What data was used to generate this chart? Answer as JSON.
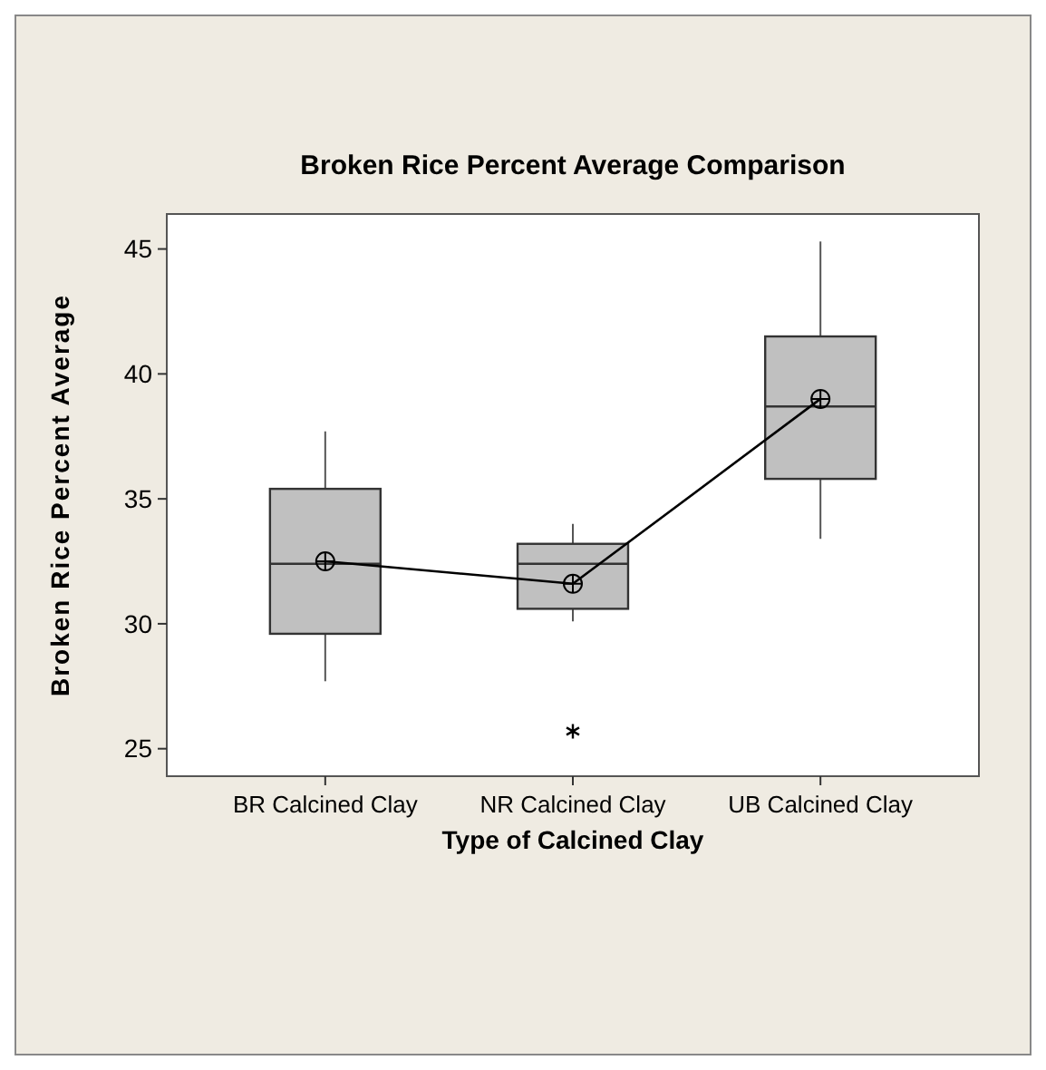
{
  "chart_data": {
    "type": "box",
    "title": "Broken Rice Percent Average Comparison",
    "xlabel": "Type of Calcined Clay",
    "ylabel": "Broken Rice Percent Average",
    "categories": [
      "BR Calcined Clay",
      "NR Calcined Clay",
      "UB Calcined Clay"
    ],
    "ylim": [
      23.9,
      46.4
    ],
    "yticks": [
      25,
      30,
      35,
      40,
      45
    ],
    "grid": false,
    "series": [
      {
        "color": "#c0c0c0",
        "boxes": [
          {
            "low": 27.7,
            "q1": 29.6,
            "median": 32.4,
            "q3": 35.4,
            "high": 37.7
          },
          {
            "low": 30.1,
            "q1": 30.6,
            "median": 32.4,
            "q3": 33.2,
            "high": 34.0,
            "outliers": [
              25.7
            ]
          },
          {
            "low": 33.4,
            "q1": 35.8,
            "median": 38.7,
            "q3": 41.5,
            "high": 45.3
          }
        ]
      },
      {
        "type": "line",
        "color": "#000000",
        "values": [
          32.5,
          31.6,
          39.0
        ],
        "marker": "circle"
      }
    ]
  }
}
